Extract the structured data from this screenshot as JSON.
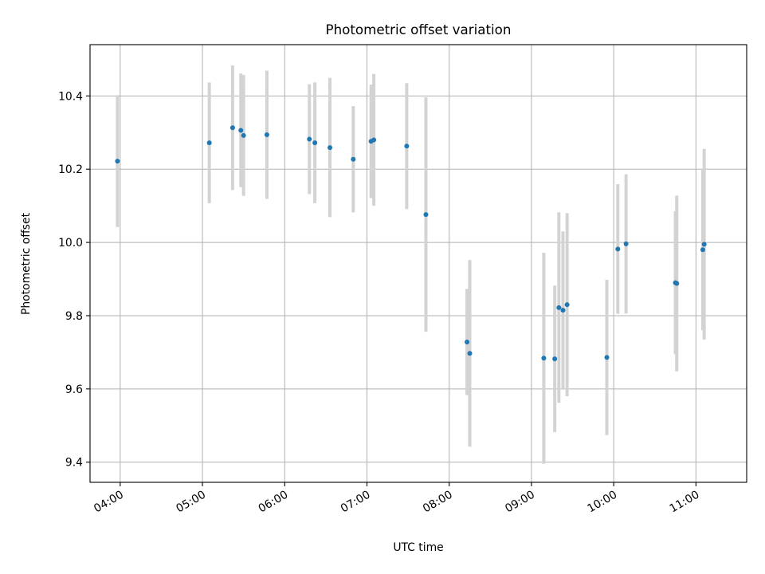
{
  "chart_data": {
    "type": "scatter",
    "title": "Photometric offset variation",
    "xlabel": "UTC time",
    "ylabel": "Photometric offset",
    "x_ticks": [
      "04:00",
      "05:00",
      "06:00",
      "07:00",
      "08:00",
      "09:00",
      "10:00",
      "11:00"
    ],
    "y_ticks": [
      "9.4",
      "9.6",
      "9.8",
      "10.0",
      "10.2",
      "10.4"
    ],
    "x_range": [
      "03:38",
      "11:37"
    ],
    "ylim": [
      9.345,
      10.54
    ],
    "grid": true,
    "colors": {
      "point": "#1f77b4",
      "errorbar": "#d3d3d3",
      "grid": "#b0b0b0"
    },
    "points": [
      {
        "time": "03:58",
        "y": 10.222,
        "err": 0.18
      },
      {
        "time": "05:05",
        "y": 10.272,
        "err": 0.165
      },
      {
        "time": "05:22",
        "y": 10.313,
        "err": 0.17
      },
      {
        "time": "05:28",
        "y": 10.306,
        "err": 0.155
      },
      {
        "time": "05:30",
        "y": 10.292,
        "err": 0.165
      },
      {
        "time": "05:47",
        "y": 10.294,
        "err": 0.175
      },
      {
        "time": "06:18",
        "y": 10.282,
        "err": 0.15
      },
      {
        "time": "06:22",
        "y": 10.272,
        "err": 0.165
      },
      {
        "time": "06:33",
        "y": 10.259,
        "err": 0.19
      },
      {
        "time": "06:50",
        "y": 10.227,
        "err": 0.145
      },
      {
        "time": "07:03",
        "y": 10.276,
        "err": 0.155
      },
      {
        "time": "07:05",
        "y": 10.28,
        "err": 0.18
      },
      {
        "time": "07:29",
        "y": 10.263,
        "err": 0.172
      },
      {
        "time": "07:43",
        "y": 10.076,
        "err": 0.32
      },
      {
        "time": "08:13",
        "y": 9.728,
        "err": 0.145
      },
      {
        "time": "08:15",
        "y": 9.697,
        "err": 0.255
      },
      {
        "time": "09:09",
        "y": 9.684,
        "err": 0.288
      },
      {
        "time": "09:17",
        "y": 9.682,
        "err": 0.2
      },
      {
        "time": "09:20",
        "y": 9.822,
        "err": 0.26
      },
      {
        "time": "09:23",
        "y": 9.815,
        "err": 0.215
      },
      {
        "time": "09:26",
        "y": 9.83,
        "err": 0.25
      },
      {
        "time": "09:55",
        "y": 9.686,
        "err": 0.212
      },
      {
        "time": "10:03",
        "y": 9.982,
        "err": 0.177
      },
      {
        "time": "10:09",
        "y": 9.996,
        "err": 0.19
      },
      {
        "time": "10:45",
        "y": 9.89,
        "err": 0.195
      },
      {
        "time": "10:46",
        "y": 9.888,
        "err": 0.24
      },
      {
        "time": "11:05",
        "y": 9.98,
        "err": 0.22
      },
      {
        "time": "11:06",
        "y": 9.995,
        "err": 0.26
      }
    ]
  }
}
